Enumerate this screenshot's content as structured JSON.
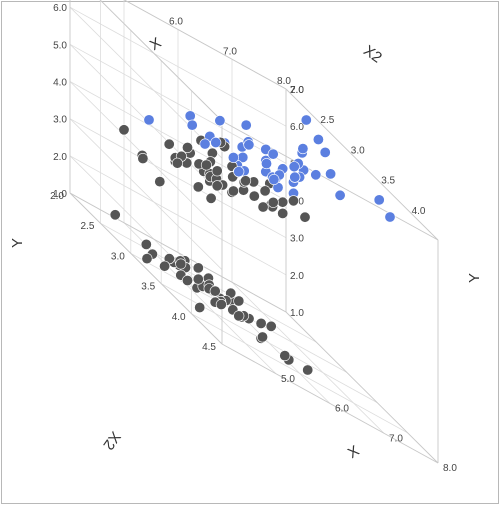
{
  "chart_data": {
    "type": "scatter",
    "title": "",
    "xlabel": "X",
    "ylabel": "Y",
    "zlabel": "X2",
    "xlim": [
      4.0,
      8.0
    ],
    "ylim": [
      1.0,
      7.0
    ],
    "zlim": [
      2.0,
      4.5
    ],
    "x_ticks": [
      "5.0",
      "6.0",
      "7.0",
      "8.0"
    ],
    "y_ticks": [
      "1.0",
      "2.0",
      "3.0",
      "4.0",
      "5.0",
      "6.0",
      "7.0"
    ],
    "z_ticks": [
      "2.0",
      "2.5",
      "3.0",
      "3.5",
      "4.0",
      "4.5"
    ],
    "colors": {
      "group_a": "#555555",
      "group_b": "#5b7fe0",
      "grid": "#dcdcdc"
    },
    "series": [
      {
        "color": "#555555",
        "points": [
          [
            5.1,
            1.4,
            3.5
          ],
          [
            4.9,
            1.4,
            3.0
          ],
          [
            4.7,
            1.3,
            3.2
          ],
          [
            4.6,
            1.5,
            3.1
          ],
          [
            5.0,
            1.4,
            3.6
          ],
          [
            5.4,
            1.7,
            3.9
          ],
          [
            4.6,
            1.4,
            3.4
          ],
          [
            5.0,
            1.5,
            3.4
          ],
          [
            4.4,
            1.4,
            2.9
          ],
          [
            4.9,
            1.5,
            3.1
          ],
          [
            5.4,
            1.5,
            3.7
          ],
          [
            4.8,
            1.6,
            3.4
          ],
          [
            4.8,
            1.4,
            3.0
          ],
          [
            4.3,
            1.1,
            3.0
          ],
          [
            5.8,
            1.2,
            4.0
          ],
          [
            5.7,
            1.5,
            4.4
          ],
          [
            5.4,
            1.3,
            3.9
          ],
          [
            5.1,
            1.4,
            3.5
          ],
          [
            5.7,
            1.7,
            3.8
          ],
          [
            5.1,
            1.5,
            3.8
          ],
          [
            5.4,
            1.7,
            3.4
          ],
          [
            5.1,
            1.5,
            3.7
          ],
          [
            4.6,
            1.0,
            3.6
          ],
          [
            5.1,
            1.7,
            3.3
          ],
          [
            4.8,
            1.9,
            3.4
          ],
          [
            5.0,
            1.6,
            3.0
          ],
          [
            5.0,
            1.6,
            3.4
          ],
          [
            5.2,
            1.5,
            3.5
          ],
          [
            5.2,
            1.4,
            3.4
          ],
          [
            4.7,
            1.6,
            3.2
          ],
          [
            4.8,
            1.6,
            3.1
          ],
          [
            5.4,
            1.5,
            3.4
          ],
          [
            5.2,
            1.5,
            4.1
          ],
          [
            5.5,
            1.4,
            4.2
          ],
          [
            4.9,
            1.5,
            3.1
          ],
          [
            5.0,
            1.2,
            3.2
          ],
          [
            5.5,
            1.3,
            3.5
          ],
          [
            4.4,
            1.3,
            3.0
          ],
          [
            5.1,
            1.5,
            3.4
          ],
          [
            5.0,
            1.3,
            3.5
          ],
          [
            4.5,
            1.3,
            2.3
          ],
          [
            4.4,
            1.3,
            3.2
          ],
          [
            5.0,
            1.6,
            3.5
          ],
          [
            5.1,
            1.9,
            3.8
          ],
          [
            4.8,
            1.4,
            3.0
          ],
          [
            5.3,
            1.5,
            3.7
          ],
          [
            5.0,
            1.4,
            3.3
          ],
          [
            7.0,
            4.7,
            3.2
          ],
          [
            6.4,
            4.5,
            3.2
          ],
          [
            6.9,
            4.9,
            3.1
          ],
          [
            5.5,
            4.0,
            2.3
          ],
          [
            6.5,
            4.6,
            2.8
          ],
          [
            5.7,
            4.5,
            2.8
          ],
          [
            6.3,
            4.7,
            3.3
          ],
          [
            4.9,
            3.3,
            2.4
          ],
          [
            6.6,
            4.6,
            2.9
          ],
          [
            5.2,
            3.9,
            2.7
          ],
          [
            5.0,
            3.5,
            2.0
          ],
          [
            5.9,
            4.2,
            3.0
          ],
          [
            6.0,
            4.0,
            2.2
          ],
          [
            6.1,
            4.7,
            2.9
          ],
          [
            5.6,
            3.6,
            2.9
          ],
          [
            6.7,
            4.4,
            3.1
          ],
          [
            5.6,
            4.5,
            3.0
          ],
          [
            5.8,
            4.1,
            2.7
          ],
          [
            6.2,
            4.5,
            2.2
          ],
          [
            5.6,
            3.9,
            2.5
          ],
          [
            5.9,
            4.8,
            3.2
          ],
          [
            6.1,
            4.0,
            2.8
          ],
          [
            6.3,
            4.9,
            2.5
          ],
          [
            6.1,
            4.7,
            2.8
          ],
          [
            6.4,
            4.3,
            2.9
          ],
          [
            6.6,
            4.4,
            3.0
          ],
          [
            6.8,
            4.8,
            2.8
          ],
          [
            6.0,
            4.5,
            2.9
          ],
          [
            5.7,
            3.5,
            2.6
          ],
          [
            5.5,
            3.8,
            2.4
          ],
          [
            5.5,
            3.7,
            2.4
          ],
          [
            5.8,
            3.9,
            2.7
          ],
          [
            6.0,
            5.1,
            2.7
          ],
          [
            5.4,
            4.5,
            3.0
          ],
          [
            6.0,
            4.5,
            3.4
          ],
          [
            6.7,
            4.7,
            3.1
          ],
          [
            6.3,
            4.4,
            2.3
          ],
          [
            5.6,
            4.1,
            3.0
          ],
          [
            5.5,
            4.0,
            2.5
          ],
          [
            5.5,
            4.4,
            2.6
          ],
          [
            6.1,
            4.6,
            3.0
          ],
          [
            5.8,
            4.0,
            2.6
          ],
          [
            5.0,
            3.3,
            2.3
          ],
          [
            5.6,
            4.2,
            2.7
          ],
          [
            5.7,
            4.2,
            3.0
          ],
          [
            5.7,
            4.2,
            2.9
          ],
          [
            6.2,
            4.3,
            2.9
          ],
          [
            5.1,
            3.0,
            2.5
          ],
          [
            5.7,
            4.1,
            2.8
          ]
        ]
      },
      {
        "color": "#5b7fe0",
        "points": [
          [
            6.3,
            6.0,
            3.3
          ],
          [
            5.8,
            5.1,
            2.7
          ],
          [
            7.1,
            5.9,
            3.0
          ],
          [
            6.3,
            5.6,
            2.9
          ],
          [
            6.5,
            5.8,
            3.0
          ],
          [
            7.6,
            6.6,
            3.0
          ],
          [
            4.9,
            4.5,
            2.5
          ],
          [
            7.3,
            6.3,
            2.9
          ],
          [
            6.7,
            5.8,
            2.5
          ],
          [
            7.2,
            6.1,
            3.6
          ],
          [
            6.5,
            5.1,
            3.2
          ],
          [
            6.4,
            5.3,
            2.7
          ],
          [
            6.8,
            5.5,
            3.0
          ],
          [
            5.7,
            5.0,
            2.5
          ],
          [
            5.8,
            5.1,
            2.8
          ],
          [
            6.4,
            5.3,
            3.2
          ],
          [
            6.5,
            5.5,
            3.0
          ],
          [
            7.7,
            6.7,
            3.8
          ],
          [
            7.7,
            6.9,
            2.6
          ],
          [
            6.0,
            5.0,
            2.2
          ],
          [
            6.9,
            5.7,
            3.2
          ],
          [
            5.6,
            4.9,
            2.8
          ],
          [
            7.7,
            6.7,
            2.8
          ],
          [
            6.3,
            4.9,
            2.7
          ],
          [
            6.7,
            5.7,
            3.3
          ],
          [
            7.2,
            6.0,
            3.2
          ],
          [
            6.2,
            4.8,
            2.8
          ],
          [
            6.1,
            4.9,
            3.0
          ],
          [
            6.4,
            5.6,
            2.8
          ],
          [
            7.2,
            5.8,
            3.0
          ],
          [
            7.4,
            6.1,
            2.8
          ],
          [
            7.9,
            6.4,
            3.8
          ],
          [
            6.4,
            5.6,
            2.8
          ],
          [
            6.3,
            5.1,
            2.8
          ],
          [
            6.1,
            5.6,
            2.6
          ],
          [
            7.7,
            6.1,
            3.0
          ],
          [
            6.3,
            5.6,
            3.4
          ],
          [
            6.4,
            5.5,
            3.1
          ],
          [
            6.0,
            4.8,
            3.0
          ],
          [
            6.9,
            5.4,
            3.1
          ],
          [
            6.7,
            5.6,
            3.1
          ],
          [
            6.9,
            5.1,
            3.1
          ],
          [
            6.8,
            5.9,
            3.2
          ],
          [
            6.7,
            5.7,
            3.3
          ],
          [
            6.7,
            5.2,
            3.0
          ],
          [
            6.3,
            5.0,
            2.5
          ],
          [
            6.5,
            5.2,
            3.0
          ],
          [
            6.2,
            5.4,
            3.4
          ],
          [
            5.9,
            5.1,
            3.0
          ]
        ]
      }
    ]
  }
}
